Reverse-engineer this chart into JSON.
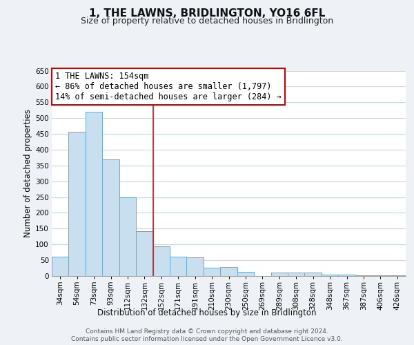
{
  "title": "1, THE LAWNS, BRIDLINGTON, YO16 6FL",
  "subtitle": "Size of property relative to detached houses in Bridlington",
  "xlabel": "Distribution of detached houses by size in Bridlington",
  "ylabel": "Number of detached properties",
  "bar_labels": [
    "34sqm",
    "54sqm",
    "73sqm",
    "93sqm",
    "112sqm",
    "132sqm",
    "152sqm",
    "171sqm",
    "191sqm",
    "210sqm",
    "230sqm",
    "250sqm",
    "269sqm",
    "289sqm",
    "308sqm",
    "328sqm",
    "348sqm",
    "367sqm",
    "387sqm",
    "406sqm",
    "426sqm"
  ],
  "bar_values": [
    62,
    457,
    520,
    370,
    250,
    142,
    95,
    62,
    58,
    27,
    28,
    13,
    0,
    12,
    10,
    10,
    5,
    5,
    3,
    3,
    2
  ],
  "bar_color": "#c8dff0",
  "bar_edge_color": "#6aaad4",
  "ylim": [
    0,
    650
  ],
  "yticks": [
    0,
    50,
    100,
    150,
    200,
    250,
    300,
    350,
    400,
    450,
    500,
    550,
    600,
    650
  ],
  "annotation_title": "1 THE LAWNS: 154sqm",
  "annotation_line1": "← 86% of detached houses are smaller (1,797)",
  "annotation_line2": "14% of semi-detached houses are larger (284) →",
  "annotation_box_color": "#ffffff",
  "annotation_box_edge": "#cc0000",
  "vline_bar_index": 5,
  "vline_color": "#cc2222",
  "footer_line1": "Contains HM Land Registry data © Crown copyright and database right 2024.",
  "footer_line2": "Contains public sector information licensed under the Open Government Licence v3.0.",
  "background_color": "#eef2f7",
  "plot_background": "#ffffff",
  "grid_color": "#c8d8e8",
  "title_fontsize": 11,
  "subtitle_fontsize": 9,
  "axis_label_fontsize": 8.5,
  "tick_fontsize": 7.5,
  "footer_fontsize": 6.5,
  "annotation_fontsize": 8.5
}
